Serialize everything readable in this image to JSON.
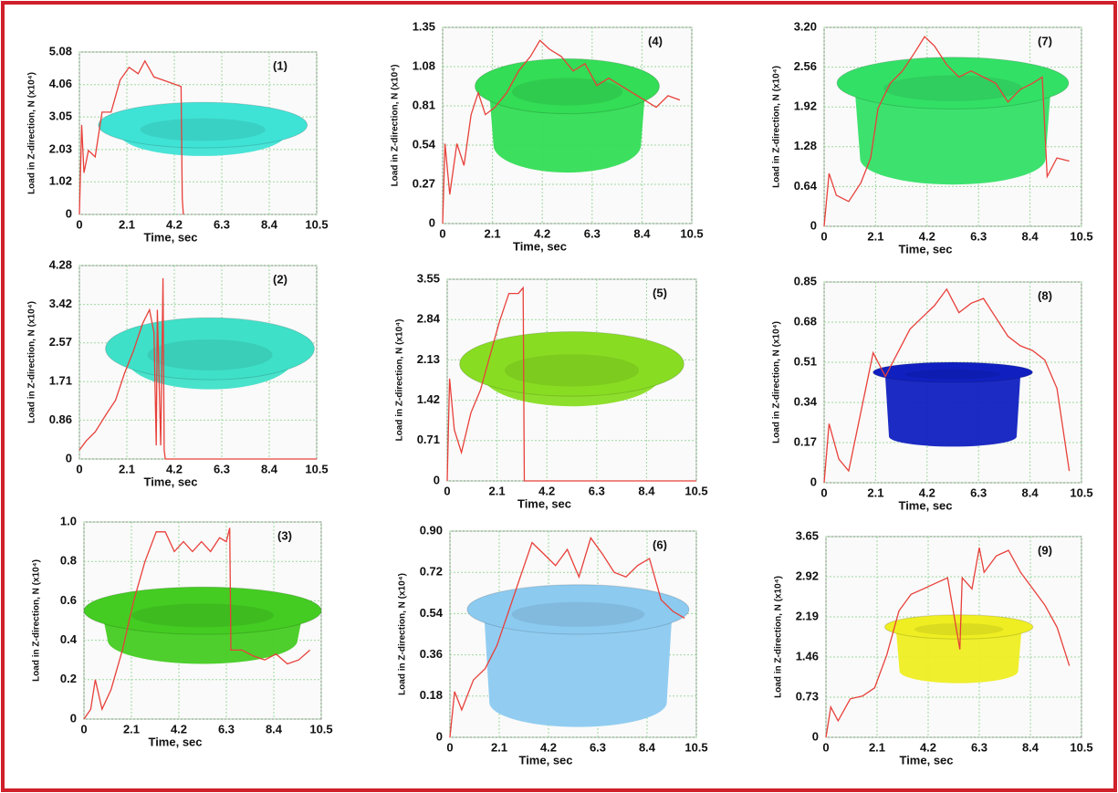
{
  "chart_data": [
    {
      "type": "line",
      "label": "(1)",
      "x_label": "Time, sec",
      "y_label": "Load in Z-direction, N (x10⁴)",
      "xlim": [
        0,
        10.5
      ],
      "xticks": [
        0,
        2.1,
        4.2,
        6.3,
        8.4,
        10.5
      ],
      "ylim": [
        0,
        5.08
      ],
      "yticks": [
        0,
        1.02,
        2.03,
        3.05,
        4.06,
        5.08
      ],
      "grid": true,
      "color": "#e8403a",
      "x": [
        0,
        0.1,
        0.2,
        0.4,
        0.7,
        1.0,
        1.4,
        1.8,
        2.2,
        2.6,
        2.9,
        3.3,
        3.7,
        4.1,
        4.5,
        4.55,
        4.6
      ],
      "values": [
        0,
        2.8,
        1.3,
        2.0,
        1.8,
        3.2,
        3.2,
        4.2,
        4.6,
        4.4,
        4.8,
        4.3,
        4.2,
        4.1,
        4.0,
        0.5,
        0
      ]
    },
    {
      "type": "line",
      "label": "(2)",
      "x_label": "Time, sec",
      "y_label": "Load in Z-direction, N (x10⁴)",
      "xlim": [
        0,
        10.5
      ],
      "xticks": [
        0,
        2.1,
        4.2,
        6.3,
        8.4,
        10.5
      ],
      "ylim": [
        0,
        4.28
      ],
      "yticks": [
        0,
        0.86,
        1.71,
        2.57,
        3.42,
        4.28
      ],
      "grid": true,
      "color": "#e8403a",
      "x": [
        0,
        0.3,
        0.7,
        1.2,
        1.6,
        2.0,
        2.4,
        2.8,
        3.1,
        3.3,
        3.4,
        3.45,
        3.6,
        3.7,
        3.75,
        3.8,
        4.0,
        6.0,
        8.4,
        10.5
      ],
      "values": [
        0.2,
        0.4,
        0.6,
        1.0,
        1.3,
        1.9,
        2.4,
        3.0,
        3.3,
        2.8,
        0.3,
        3.3,
        0.3,
        4.0,
        0.2,
        0,
        0,
        0,
        0,
        0
      ]
    },
    {
      "type": "line",
      "label": "(3)",
      "x_label": "Time, sec",
      "y_label": "Load in Z-direction, N (x10⁴)",
      "xlim": [
        0,
        10.5
      ],
      "xticks": [
        0,
        2.1,
        4.2,
        6.3,
        8.4,
        10.5
      ],
      "ylim": [
        0,
        1
      ],
      "yticks": [
        0,
        0.2,
        0.4,
        0.6,
        0.8,
        {
          "value": 1,
          "label": "1.0"
        }
      ],
      "grid": true,
      "color": "#e8403a",
      "x": [
        0,
        0.3,
        0.5,
        0.8,
        1.2,
        1.7,
        2.2,
        2.7,
        3.2,
        3.6,
        4.0,
        4.4,
        4.8,
        5.2,
        5.6,
        6.0,
        6.3,
        6.45,
        6.5,
        7.0,
        7.5,
        8.0,
        8.5,
        9.0,
        9.5,
        10.0
      ],
      "values": [
        0,
        0.05,
        0.2,
        0.05,
        0.15,
        0.35,
        0.6,
        0.8,
        0.95,
        0.95,
        0.85,
        0.9,
        0.85,
        0.9,
        0.85,
        0.92,
        0.9,
        0.97,
        0.35,
        0.35,
        0.32,
        0.3,
        0.33,
        0.28,
        0.3,
        0.35
      ]
    },
    {
      "type": "line",
      "label": "(4)",
      "x_label": "Time, sec",
      "y_label": "Load in Z-direction, N (x10⁴)",
      "xlim": [
        0,
        10.5
      ],
      "xticks": [
        0,
        2.1,
        4.2,
        6.3,
        8.4,
        10.5
      ],
      "ylim": [
        0,
        1.35
      ],
      "yticks": [
        0,
        0.27,
        0.54,
        0.81,
        1.08,
        1.35
      ],
      "grid": true,
      "color": "#e8403a",
      "x": [
        0,
        0.1,
        0.3,
        0.6,
        0.9,
        1.2,
        1.5,
        1.8,
        2.2,
        2.7,
        3.2,
        3.7,
        4.1,
        4.5,
        5.0,
        5.5,
        6.0,
        6.5,
        7.0,
        7.5,
        8.0,
        8.5,
        9.0,
        9.5,
        10.0
      ],
      "values": [
        0,
        0.55,
        0.2,
        0.55,
        0.4,
        0.75,
        0.9,
        0.75,
        0.8,
        0.9,
        1.05,
        1.15,
        1.26,
        1.2,
        1.15,
        1.05,
        1.1,
        0.95,
        1.0,
        0.95,
        0.9,
        0.85,
        0.8,
        0.88,
        0.85
      ]
    },
    {
      "type": "line",
      "label": "(5)",
      "x_label": "Time, sec",
      "y_label": "Load in Z-direction, N (x10⁴)",
      "xlim": [
        0,
        10.5
      ],
      "xticks": [
        0,
        2.1,
        4.2,
        6.3,
        8.4,
        10.5
      ],
      "ylim": [
        0,
        3.55
      ],
      "yticks": [
        0,
        0.71,
        1.42,
        2.13,
        2.84,
        3.55
      ],
      "grid": true,
      "color": "#e8403a",
      "x": [
        0,
        0.1,
        0.3,
        0.6,
        1.0,
        1.4,
        1.8,
        2.2,
        2.6,
        3.0,
        3.2,
        3.25,
        4.2,
        6.3,
        8.4,
        10.5
      ],
      "values": [
        0,
        1.8,
        0.9,
        0.5,
        1.2,
        1.6,
        2.2,
        2.8,
        3.3,
        3.3,
        3.4,
        0,
        0,
        0,
        0,
        0
      ]
    },
    {
      "type": "line",
      "label": "(6)",
      "x_label": "Time, sec",
      "y_label": "Load in Z-direction, N (x10⁴)",
      "xlim": [
        0,
        10.5
      ],
      "xticks": [
        0,
        2.1,
        4.2,
        6.3,
        8.4,
        10.5
      ],
      "ylim": [
        0,
        0.9
      ],
      "yticks": [
        0,
        0.18,
        0.36,
        0.54,
        0.72,
        {
          "value": 0.9,
          "label": "0.90"
        }
      ],
      "grid": true,
      "color": "#e8403a",
      "x": [
        0,
        0.2,
        0.5,
        1.0,
        1.5,
        2.0,
        2.5,
        3.0,
        3.5,
        4.0,
        4.5,
        5.0,
        5.5,
        6.0,
        6.5,
        7.0,
        7.5,
        8.0,
        8.5,
        9.0,
        9.5,
        10.0
      ],
      "values": [
        0,
        0.2,
        0.12,
        0.25,
        0.3,
        0.4,
        0.55,
        0.7,
        0.85,
        0.8,
        0.75,
        0.82,
        0.7,
        0.87,
        0.8,
        0.72,
        0.7,
        0.75,
        0.78,
        0.6,
        0.55,
        0.52
      ]
    },
    {
      "type": "line",
      "label": "(7)",
      "x_label": "Time, sec",
      "y_label": "Load in Z-direction, N (x10⁴)",
      "xlim": [
        0,
        10.5
      ],
      "xticks": [
        0,
        2.1,
        4.2,
        6.3,
        8.4,
        10.5
      ],
      "ylim": [
        0,
        3.2
      ],
      "yticks": [
        0,
        0.64,
        1.28,
        1.92,
        2.56,
        {
          "value": 3.2,
          "label": "3.20"
        }
      ],
      "grid": true,
      "color": "#e8403a",
      "x": [
        0,
        0.2,
        0.5,
        1.0,
        1.5,
        1.9,
        2.2,
        2.7,
        3.2,
        3.7,
        4.1,
        4.5,
        5.0,
        5.5,
        6.0,
        6.5,
        7.0,
        7.5,
        8.0,
        8.5,
        8.9,
        9.1,
        9.5,
        10.0
      ],
      "values": [
        0,
        0.85,
        0.5,
        0.4,
        0.7,
        1.1,
        1.9,
        2.3,
        2.5,
        2.8,
        3.05,
        2.9,
        2.6,
        2.4,
        2.5,
        2.4,
        2.3,
        2.0,
        2.2,
        2.3,
        2.4,
        0.8,
        1.1,
        1.05
      ]
    },
    {
      "type": "line",
      "label": "(8)",
      "x_label": "Time, sec",
      "y_label": "Load in Z-direction, N (x10⁴)",
      "xlim": [
        0,
        10.5
      ],
      "xticks": [
        0,
        2.1,
        4.2,
        6.3,
        8.4,
        10.5
      ],
      "ylim": [
        0,
        0.85
      ],
      "yticks": [
        0,
        0.17,
        0.34,
        0.51,
        0.68,
        0.85
      ],
      "grid": true,
      "color": "#e8403a",
      "x": [
        0,
        0.2,
        0.6,
        1.0,
        1.5,
        2.0,
        2.5,
        3.0,
        3.5,
        4.0,
        4.5,
        5.0,
        5.5,
        6.0,
        6.5,
        7.0,
        7.5,
        8.0,
        8.5,
        9.0,
        9.5,
        10.0
      ],
      "values": [
        0,
        0.25,
        0.1,
        0.05,
        0.3,
        0.55,
        0.45,
        0.55,
        0.65,
        0.7,
        0.75,
        0.82,
        0.72,
        0.76,
        0.78,
        0.7,
        0.62,
        0.58,
        0.56,
        0.52,
        0.4,
        0.05
      ]
    },
    {
      "type": "line",
      "label": "(9)",
      "x_label": "Time, sec",
      "y_label": "Load in Z-direction, N (x10⁴)",
      "xlim": [
        0,
        10.5
      ],
      "xticks": [
        0,
        2.1,
        4.2,
        6.3,
        8.4,
        10.5
      ],
      "ylim": [
        0,
        3.65
      ],
      "yticks": [
        0,
        0.73,
        1.46,
        2.19,
        2.92,
        3.65
      ],
      "grid": true,
      "color": "#e8403a",
      "x": [
        0,
        0.2,
        0.5,
        1.0,
        1.5,
        2.0,
        2.5,
        3.0,
        3.5,
        4.0,
        4.5,
        5.0,
        5.5,
        5.6,
        6.0,
        6.3,
        6.5,
        7.0,
        7.5,
        8.0,
        8.5,
        9.0,
        9.5,
        10.0
      ],
      "values": [
        0,
        0.55,
        0.3,
        0.7,
        0.75,
        0.9,
        1.5,
        2.3,
        2.6,
        2.7,
        2.8,
        2.9,
        1.6,
        2.9,
        2.7,
        3.45,
        3.0,
        3.3,
        3.4,
        3.0,
        2.7,
        2.4,
        2.0,
        1.3
      ]
    }
  ]
}
